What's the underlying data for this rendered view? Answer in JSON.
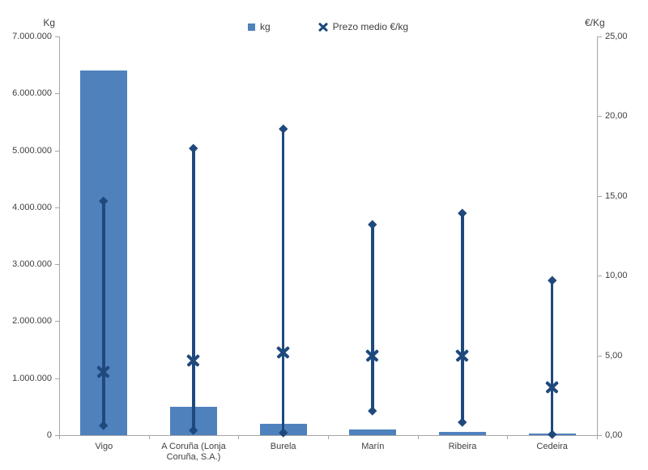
{
  "chart_data": {
    "type": "bar",
    "subtype": "combo-bar-with-high-low-average-markers",
    "title": "",
    "background_color": "#ffffff",
    "bar_color": "#4f81bd",
    "marker_color": "#1f497d",
    "axis_color": "#a6a6a6",
    "grid": "off",
    "legend_position": "top",
    "categories": [
      "Vigo",
      "A Coruña (Lonja Coruña, S.A.)",
      "Burela",
      "Marín",
      "Ribeira",
      "Cedeira"
    ],
    "left_axis": {
      "title": "Kg",
      "min": 0,
      "max": 7000000,
      "step": 1000000,
      "tick_values": [
        0,
        1000000,
        2000000,
        3000000,
        4000000,
        5000000,
        6000000,
        7000000
      ],
      "tick_labels": [
        "0",
        "1.000.000",
        "2.000.000",
        "3.000.000",
        "4.000.000",
        "5.000.000",
        "6.000.000",
        "7.000.000"
      ]
    },
    "right_axis": {
      "title": "€/Kg",
      "min": 0,
      "max": 25,
      "step": 5,
      "tick_values": [
        0,
        5,
        10,
        15,
        20,
        25
      ],
      "tick_labels": [
        "0,00",
        "5,00",
        "10,00",
        "15,00",
        "20,00",
        "25,00"
      ]
    },
    "series": [
      {
        "name": "kg",
        "type": "bar",
        "axis": "left",
        "color": "#4f81bd",
        "values": [
          6400000,
          500000,
          200000,
          100000,
          50000,
          25000
        ]
      },
      {
        "name": "Prezo medio €/kg",
        "type": "high-low-average",
        "axis": "right",
        "color": "#1f497d",
        "high": [
          14.7,
          18.0,
          19.2,
          13.2,
          13.9,
          9.7
        ],
        "avg": [
          4.0,
          4.7,
          5.2,
          5.0,
          5.0,
          3.0
        ],
        "low": [
          0.6,
          0.3,
          0.15,
          1.5,
          0.8,
          0.05
        ]
      }
    ]
  }
}
